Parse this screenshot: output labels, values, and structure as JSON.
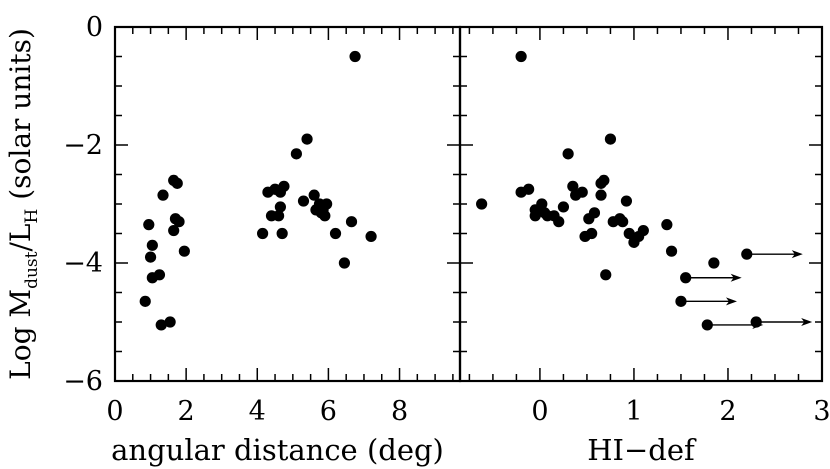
{
  "chart_data": {
    "type": "scatter",
    "ylabel": {
      "prefix": "Log M",
      "sub1": "dust",
      "mid": "/L",
      "sub2": "H",
      "suffix": " (solar units)"
    },
    "ylim": [
      -6,
      0
    ],
    "yticks": [
      0,
      -2,
      -4,
      -6
    ],
    "ytick_labels": [
      "0",
      "−2",
      "−4",
      "−6"
    ],
    "panels": [
      {
        "xlabel": "angular distance (deg)",
        "xlim": [
          0,
          9.7
        ],
        "xticks": [
          0,
          2,
          4,
          6,
          8
        ],
        "xtick_labels": [
          "0",
          "2",
          "4",
          "6",
          "8"
        ],
        "points": [
          {
            "x": 0.95,
            "y": -3.35
          },
          {
            "x": 1.05,
            "y": -3.7
          },
          {
            "x": 1.0,
            "y": -3.9
          },
          {
            "x": 1.05,
            "y": -4.25
          },
          {
            "x": 1.25,
            "y": -4.2
          },
          {
            "x": 0.85,
            "y": -4.65
          },
          {
            "x": 1.3,
            "y": -5.05
          },
          {
            "x": 1.55,
            "y": -5.0
          },
          {
            "x": 1.35,
            "y": -2.85
          },
          {
            "x": 1.65,
            "y": -2.6
          },
          {
            "x": 1.75,
            "y": -2.65
          },
          {
            "x": 1.7,
            "y": -3.25
          },
          {
            "x": 1.8,
            "y": -3.3
          },
          {
            "x": 1.65,
            "y": -3.45
          },
          {
            "x": 1.95,
            "y": -3.8
          },
          {
            "x": 4.15,
            "y": -3.5
          },
          {
            "x": 4.3,
            "y": -2.8
          },
          {
            "x": 4.4,
            "y": -3.2
          },
          {
            "x": 4.5,
            "y": -2.75
          },
          {
            "x": 4.65,
            "y": -2.8
          },
          {
            "x": 4.75,
            "y": -2.7
          },
          {
            "x": 4.65,
            "y": -3.05
          },
          {
            "x": 4.6,
            "y": -3.2
          },
          {
            "x": 4.7,
            "y": -3.5
          },
          {
            "x": 5.1,
            "y": -2.15
          },
          {
            "x": 5.4,
            "y": -1.9
          },
          {
            "x": 5.3,
            "y": -2.95
          },
          {
            "x": 5.6,
            "y": -2.85
          },
          {
            "x": 5.65,
            "y": -3.1
          },
          {
            "x": 5.75,
            "y": -3.0
          },
          {
            "x": 5.8,
            "y": -3.15
          },
          {
            "x": 5.85,
            "y": -3.1
          },
          {
            "x": 5.9,
            "y": -3.2
          },
          {
            "x": 5.95,
            "y": -3.0
          },
          {
            "x": 6.2,
            "y": -3.5
          },
          {
            "x": 6.45,
            "y": -4.0
          },
          {
            "x": 6.65,
            "y": -3.3
          },
          {
            "x": 6.75,
            "y": -0.5
          },
          {
            "x": 7.2,
            "y": -3.55
          }
        ],
        "arrows": []
      },
      {
        "xlabel": "HI−def",
        "xlim": [
          -0.85,
          3
        ],
        "xticks": [
          0,
          1,
          2,
          3
        ],
        "xtick_labels": [
          "0",
          "1",
          "2",
          "3"
        ],
        "points": [
          {
            "x": -0.2,
            "y": -0.5
          },
          {
            "x": -0.62,
            "y": -3.0
          },
          {
            "x": -0.2,
            "y": -2.8
          },
          {
            "x": -0.12,
            "y": -2.75
          },
          {
            "x": -0.05,
            "y": -3.1
          },
          {
            "x": -0.05,
            "y": -3.2
          },
          {
            "x": 0.02,
            "y": -3.0
          },
          {
            "x": 0.05,
            "y": -3.15
          },
          {
            "x": 0.08,
            "y": -3.2
          },
          {
            "x": 0.15,
            "y": -3.2
          },
          {
            "x": 0.2,
            "y": -3.3
          },
          {
            "x": 0.25,
            "y": -3.05
          },
          {
            "x": 0.3,
            "y": -2.15
          },
          {
            "x": 0.35,
            "y": -2.7
          },
          {
            "x": 0.38,
            "y": -2.85
          },
          {
            "x": 0.45,
            "y": -2.8
          },
          {
            "x": 0.48,
            "y": -3.55
          },
          {
            "x": 0.55,
            "y": -3.5
          },
          {
            "x": 0.52,
            "y": -3.25
          },
          {
            "x": 0.58,
            "y": -3.15
          },
          {
            "x": 0.65,
            "y": -2.65
          },
          {
            "x": 0.68,
            "y": -2.6
          },
          {
            "x": 0.65,
            "y": -2.85
          },
          {
            "x": 0.7,
            "y": -4.2
          },
          {
            "x": 0.75,
            "y": -1.9
          },
          {
            "x": 0.78,
            "y": -3.3
          },
          {
            "x": 0.85,
            "y": -3.25
          },
          {
            "x": 0.88,
            "y": -3.3
          },
          {
            "x": 0.92,
            "y": -2.95
          },
          {
            "x": 0.95,
            "y": -3.5
          },
          {
            "x": 1.0,
            "y": -3.65
          },
          {
            "x": 1.05,
            "y": -3.55
          },
          {
            "x": 1.1,
            "y": -3.45
          },
          {
            "x": 1.35,
            "y": -3.35
          },
          {
            "x": 1.4,
            "y": -3.8
          },
          {
            "x": 1.85,
            "y": -4.0
          }
        ],
        "arrows": [
          {
            "x": 1.5,
            "y": -4.65
          },
          {
            "x": 1.55,
            "y": -4.25
          },
          {
            "x": 1.78,
            "y": -5.05
          },
          {
            "x": 2.2,
            "y": -3.85
          },
          {
            "x": 2.3,
            "y": -5.0
          }
        ]
      }
    ]
  }
}
